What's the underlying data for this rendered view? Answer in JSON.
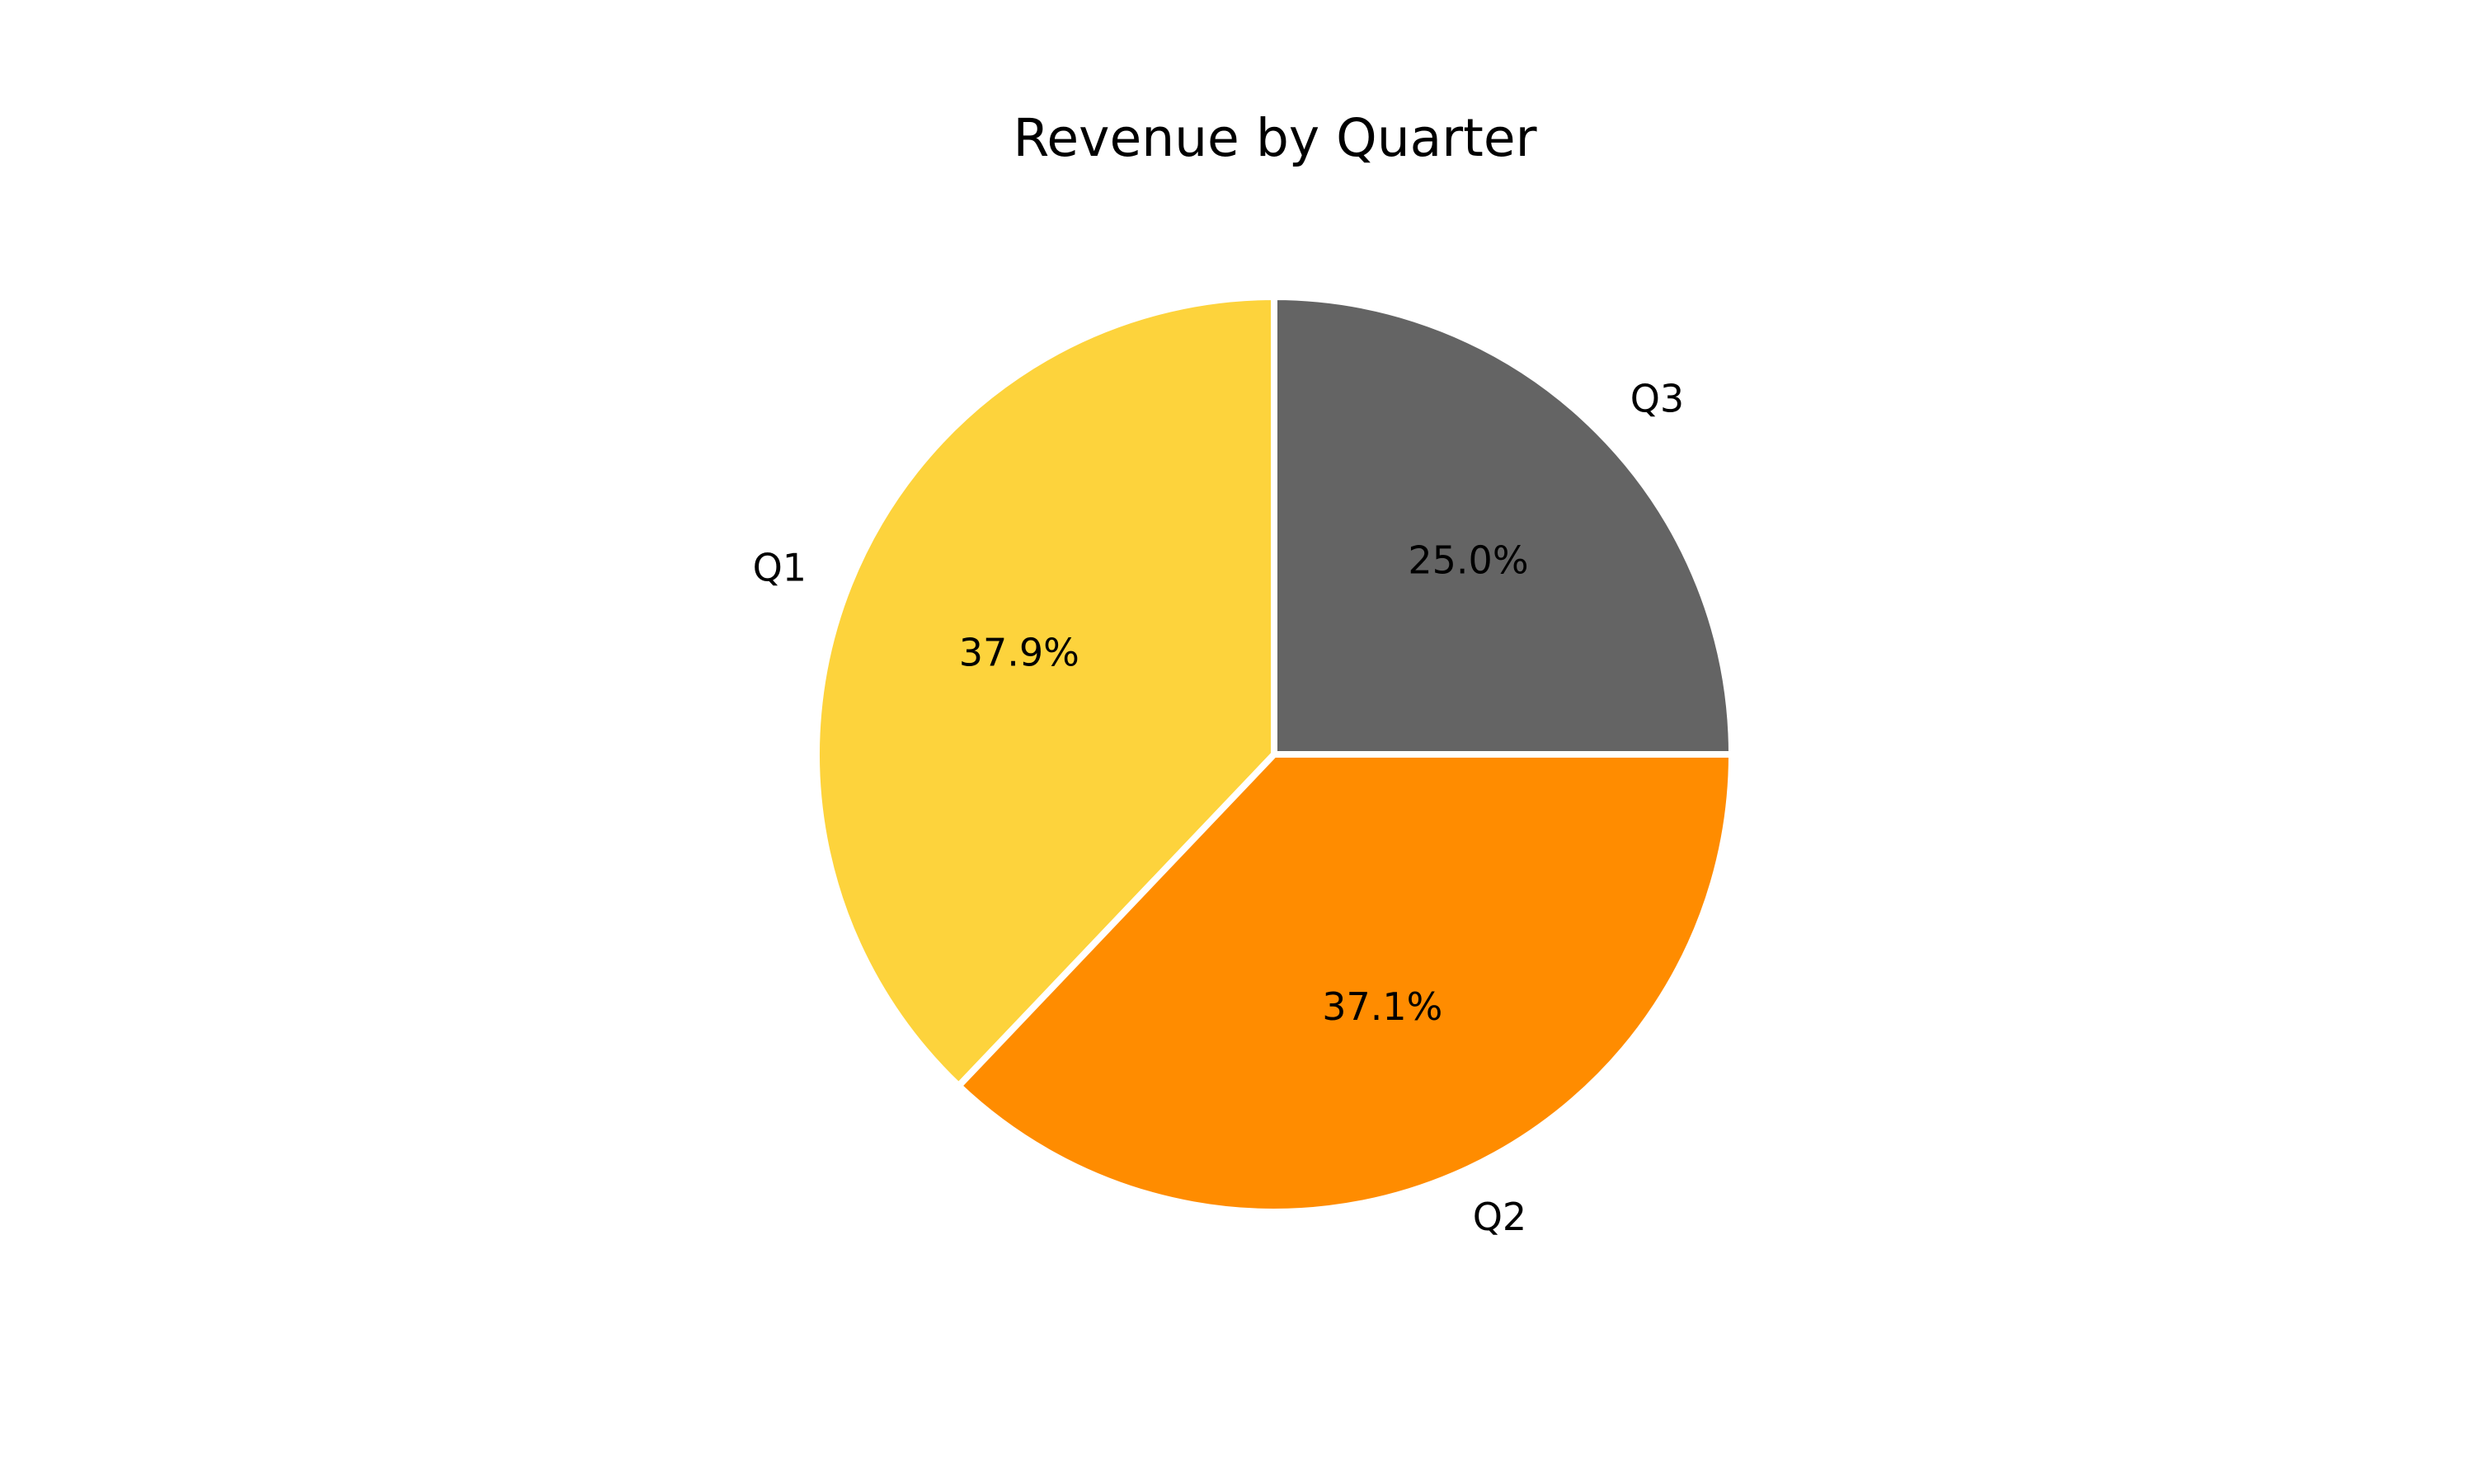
{
  "chart_data": {
    "type": "pie",
    "title": "Revenue by Quarter",
    "slices": [
      {
        "label": "Q1",
        "percent": 37.9,
        "percent_label": "37.9%",
        "color": "#FDD33C"
      },
      {
        "label": "Q2",
        "percent": 37.1,
        "percent_label": "37.1%",
        "color": "#FF8C00"
      },
      {
        "label": "Q3",
        "percent": 25.0,
        "percent_label": "25.0%",
        "color": "#646464"
      }
    ],
    "start_angle_deg": 90,
    "direction": "counterclockwise"
  }
}
